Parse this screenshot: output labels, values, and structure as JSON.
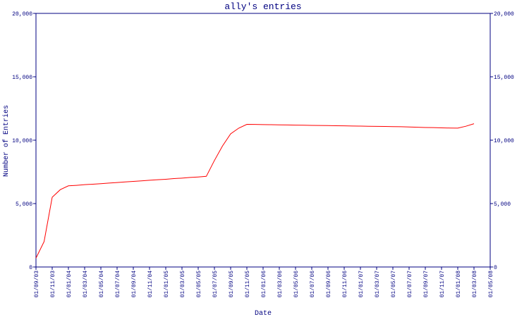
{
  "chart_data": {
    "type": "line",
    "title": "ally's entries",
    "xlabel": "Date",
    "ylabel": "Number of Entries",
    "x": [
      "01/09/03",
      "01/10/03",
      "01/11/03",
      "01/12/03",
      "01/01/04",
      "01/02/04",
      "01/03/04",
      "01/04/04",
      "01/05/04",
      "01/06/04",
      "01/07/04",
      "01/08/04",
      "01/09/04",
      "01/10/04",
      "01/11/04",
      "01/12/04",
      "01/01/05",
      "01/02/05",
      "01/03/05",
      "01/04/05",
      "01/05/05",
      "01/06/05",
      "01/07/05",
      "01/08/05",
      "01/09/05",
      "01/10/05",
      "01/11/05",
      "01/12/05",
      "01/01/06",
      "01/02/06",
      "01/03/06",
      "01/04/06",
      "01/05/06",
      "01/06/06",
      "01/07/06",
      "01/08/06",
      "01/09/06",
      "01/10/06",
      "01/11/06",
      "01/12/06",
      "01/01/07",
      "01/02/07",
      "01/03/07",
      "01/04/07",
      "01/05/07",
      "01/06/07",
      "01/07/07",
      "01/08/07",
      "01/09/07",
      "01/10/07",
      "01/11/07",
      "01/12/07",
      "01/01/08",
      "01/02/08",
      "01/03/08"
    ],
    "series": [
      {
        "name": "Number of Entries",
        "color": "#ff0000",
        "values": [
          700,
          2000,
          5500,
          6100,
          6400,
          6440,
          6490,
          6530,
          6570,
          6620,
          6660,
          6710,
          6750,
          6790,
          6840,
          6880,
          6920,
          6970,
          7010,
          7060,
          7100,
          7150,
          8400,
          9550,
          10500,
          10950,
          11250,
          11240,
          11230,
          11220,
          11210,
          11200,
          11190,
          11180,
          11170,
          11160,
          11150,
          11140,
          11130,
          11120,
          11110,
          11100,
          11090,
          11080,
          11070,
          11060,
          11040,
          11020,
          11000,
          10990,
          10970,
          10960,
          10950,
          11100,
          11300
        ]
      }
    ],
    "xlim": [
      "01/09/03",
      "01/05/08"
    ],
    "xticks": [
      "01/09/03",
      "01/11/03",
      "01/01/04",
      "01/03/04",
      "01/05/04",
      "01/07/04",
      "01/09/04",
      "01/11/04",
      "01/01/05",
      "01/03/05",
      "01/05/05",
      "01/07/05",
      "01/09/05",
      "01/11/05",
      "01/01/06",
      "01/03/06",
      "01/05/06",
      "01/07/06",
      "01/09/06",
      "01/11/06",
      "01/01/07",
      "01/03/07",
      "01/05/07",
      "01/07/07",
      "01/09/07",
      "01/11/07",
      "01/01/08",
      "01/03/08",
      "01/05/08"
    ],
    "ylim": [
      0,
      20000
    ],
    "yticks": [
      0,
      {
        "value": 5000,
        "label": "5,000"
      },
      {
        "value": 10000,
        "label": "10,000"
      },
      {
        "value": 15000,
        "label": "15,000"
      },
      {
        "value": 20000,
        "label": "20,000"
      }
    ],
    "y2lim": [
      0,
      20000
    ],
    "y2ticks": [
      0,
      {
        "value": 5000,
        "label": "5,000"
      },
      {
        "value": 10000,
        "label": "10,000"
      },
      {
        "value": 15000,
        "label": "15,000"
      },
      {
        "value": 20000,
        "label": "20,000"
      }
    ]
  }
}
